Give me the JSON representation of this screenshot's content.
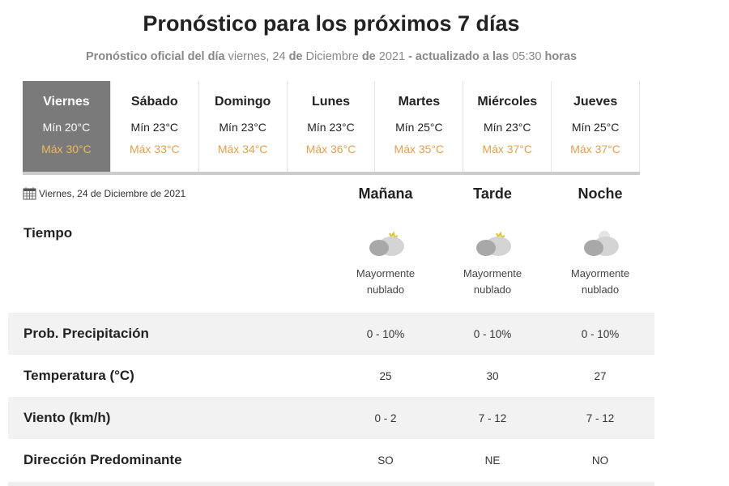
{
  "title": "Pronóstico para los próximos 7 días",
  "subtitle": {
    "p1": "Pronóstico oficial del día",
    "p2": " viernes, 24 ",
    "p3": "de",
    "p4": " Diciembre ",
    "p5": "de",
    "p6": " 2021 ",
    "p7": "- actualizado a las",
    "p8": " 05:30 ",
    "p9": "horas"
  },
  "days": [
    {
      "name": "Viernes",
      "min": "Mín 20°C",
      "max": "Máx 30°C",
      "selected": true
    },
    {
      "name": "Sábado",
      "min": "Mín 23°C",
      "max": "Máx 33°C"
    },
    {
      "name": "Domingo",
      "min": "Mín 23°C",
      "max": "Máx 34°C"
    },
    {
      "name": "Lunes",
      "min": "Mín 23°C",
      "max": "Máx 36°C"
    },
    {
      "name": "Martes",
      "min": "Mín 25°C",
      "max": "Máx 35°C"
    },
    {
      "name": "Miércoles",
      "min": "Mín 23°C",
      "max": "Máx 37°C"
    },
    {
      "name": "Jueves",
      "min": "Mín 25°C",
      "max": "Máx 37°C"
    }
  ],
  "detail": {
    "date": "Viernes, 24 de Diciembre de 2021",
    "periods": [
      "Mañana",
      "Tarde",
      "Noche"
    ],
    "tiempo_label": "Tiempo",
    "weather": [
      {
        "icon": "cloud-sun-icon",
        "l1": "Mayormente",
        "l2": "nublado"
      },
      {
        "icon": "cloud-sun-icon",
        "l1": "Mayormente",
        "l2": "nublado"
      },
      {
        "icon": "cloud-moon-icon",
        "l1": "Mayormente",
        "l2": "nublado"
      }
    ],
    "rows": [
      {
        "label": "Prob. Precipitación",
        "values": [
          "0 - 10%",
          "0 - 10%",
          "0 - 10%"
        ]
      },
      {
        "label": "Temperatura (°C)",
        "values": [
          "25",
          "30",
          "27"
        ]
      },
      {
        "label": "Viento (km/h)",
        "values": [
          "0 - 2",
          "7 - 12",
          "7 - 12"
        ]
      },
      {
        "label": "Dirección Predominante",
        "values": [
          "SO",
          "NE",
          "NO"
        ]
      }
    ]
  },
  "colors": {
    "selected_bg": "#7a7a7a",
    "max_temp": "#e0a050"
  }
}
